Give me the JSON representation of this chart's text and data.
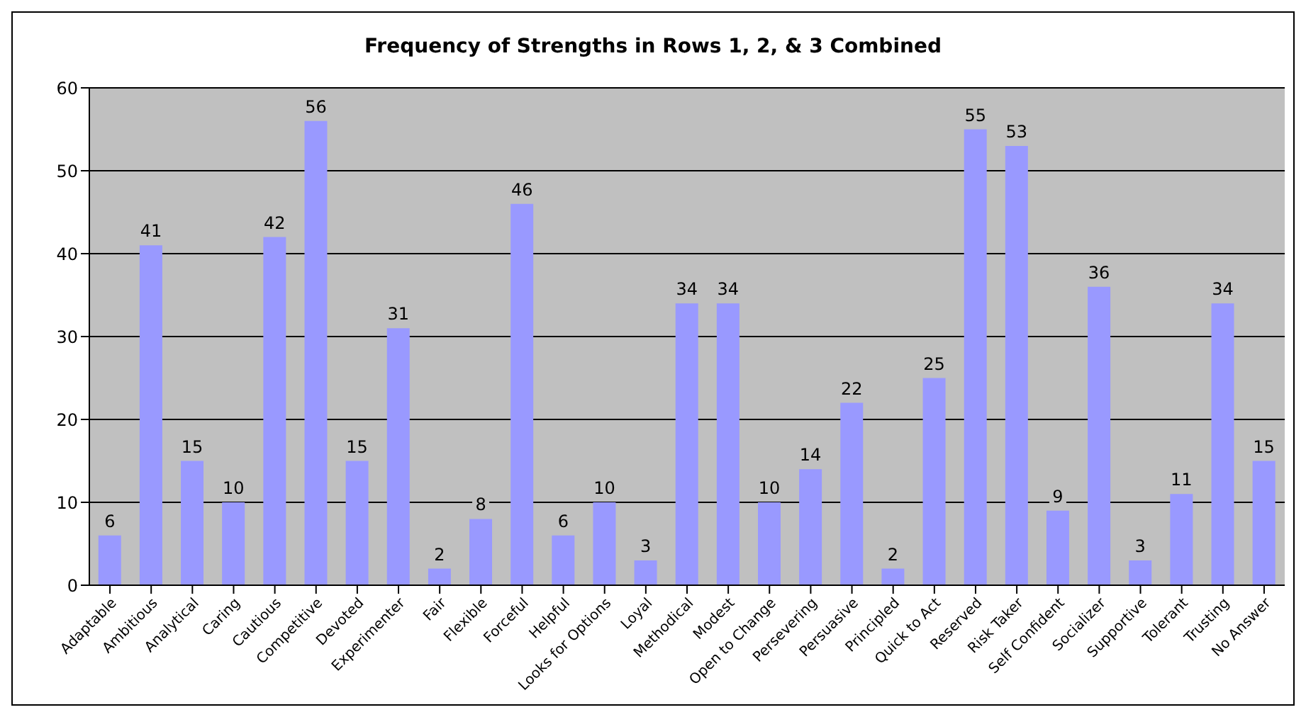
{
  "chart_data": {
    "type": "bar",
    "title": "Frequency of Strengths in Rows 1, 2, & 3 Combined",
    "categories": [
      "Adaptable",
      "Ambitious",
      "Analytical",
      "Caring",
      "Cautious",
      "Competitive",
      "Devoted",
      "Experimenter",
      "Fair",
      "Flexible",
      "Forceful",
      "Helpful",
      "Looks for Options",
      "Loyal",
      "Methodical",
      "Modest",
      "Open to Change",
      "Persevering",
      "Persuasive",
      "Principled",
      "Quick to Act",
      "Reserved",
      "Risk Taker",
      "Self Confident",
      "Socializer",
      "Supportive",
      "Tolerant",
      "Trusting",
      "No Answer"
    ],
    "values": [
      6,
      41,
      15,
      10,
      42,
      56,
      15,
      31,
      2,
      8,
      46,
      6,
      10,
      3,
      34,
      34,
      10,
      14,
      22,
      2,
      25,
      55,
      53,
      9,
      36,
      3,
      11,
      34,
      15
    ],
    "color": "#9999ff",
    "ylim": [
      0,
      60
    ],
    "yticks": [
      0,
      10,
      20,
      30,
      40,
      50,
      60
    ],
    "grid": "y",
    "data_labels": true
  }
}
